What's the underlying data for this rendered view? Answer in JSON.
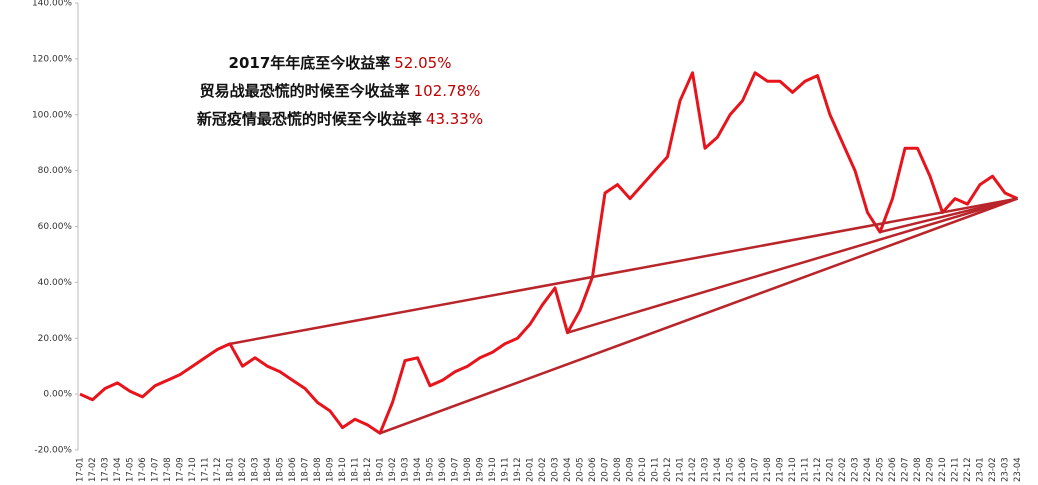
{
  "chart_data": {
    "type": "line",
    "categories": [
      "17-01",
      "17-02",
      "17-03",
      "17-04",
      "17-05",
      "17-06",
      "17-07",
      "17-08",
      "17-09",
      "17-10",
      "17-11",
      "17-12",
      "18-01",
      "18-02",
      "18-03",
      "18-04",
      "18-05",
      "18-06",
      "18-07",
      "18-08",
      "18-09",
      "18-10",
      "18-11",
      "18-12",
      "19-01",
      "19-02",
      "19-03",
      "19-04",
      "19-05",
      "19-06",
      "19-07",
      "19-08",
      "19-09",
      "19-10",
      "19-11",
      "19-12",
      "20-01",
      "20-02",
      "20-03",
      "20-04",
      "20-05",
      "20-06",
      "20-07",
      "20-08",
      "20-09",
      "20-10",
      "20-11",
      "20-12",
      "21-01",
      "21-02",
      "21-03",
      "21-04",
      "21-05",
      "21-06",
      "21-07",
      "21-08",
      "21-09",
      "21-10",
      "21-11",
      "21-12",
      "22-01",
      "22-02",
      "22-03",
      "22-04",
      "22-05",
      "22-06",
      "22-07",
      "22-08",
      "22-09",
      "22-10",
      "22-11",
      "22-12",
      "23-01",
      "23-02",
      "23-03",
      "23-04"
    ],
    "values": [
      0,
      -2,
      2,
      4,
      1,
      -1,
      3,
      5,
      7,
      10,
      13,
      16,
      18,
      10,
      13,
      10,
      8,
      5,
      2,
      -3,
      -6,
      -12,
      -9,
      -11,
      -14,
      -3,
      12,
      13,
      3,
      5,
      8,
      10,
      13,
      15,
      18,
      20,
      25,
      32,
      38,
      22,
      30,
      42,
      72,
      75,
      70,
      75,
      80,
      85,
      105,
      115,
      88,
      92,
      100,
      105,
      115,
      112,
      112,
      108,
      112,
      114,
      100,
      90,
      80,
      65,
      58,
      70,
      88,
      88,
      78,
      65,
      70,
      68,
      75,
      78,
      72,
      70
    ],
    "color": "#e8141b",
    "reference_color": "#b8252a",
    "reference_lines": [
      {
        "from": "18-01",
        "to": "23-04"
      },
      {
        "from": "19-01",
        "to": "23-04"
      },
      {
        "from": "20-04",
        "to": "23-04"
      },
      {
        "from": "22-05",
        "to": "23-04"
      }
    ],
    "ylim": [
      -20,
      140
    ],
    "yticks": [
      {
        "value": -20,
        "label": "-20.00%"
      },
      {
        "value": 0,
        "label": "0.00%"
      },
      {
        "value": 20,
        "label": "20.00%"
      },
      {
        "value": 40,
        "label": "40.00%"
      },
      {
        "value": 60,
        "label": "60.00%"
      },
      {
        "value": 80,
        "label": "80.00%"
      },
      {
        "value": 100,
        "label": "100.00%"
      },
      {
        "value": 120,
        "label": "120.00%"
      },
      {
        "value": 140,
        "label": "140.00%"
      }
    ],
    "annotations": [
      {
        "text": "2017年年底至今收益率",
        "value_label": "52.05%"
      },
      {
        "text": "贸易战最恐慌的时候至今收益率",
        "value_label": "102.78%"
      },
      {
        "text": "新冠疫情最恐慌的时候至今收益率",
        "value_label": "43.33%"
      }
    ]
  }
}
